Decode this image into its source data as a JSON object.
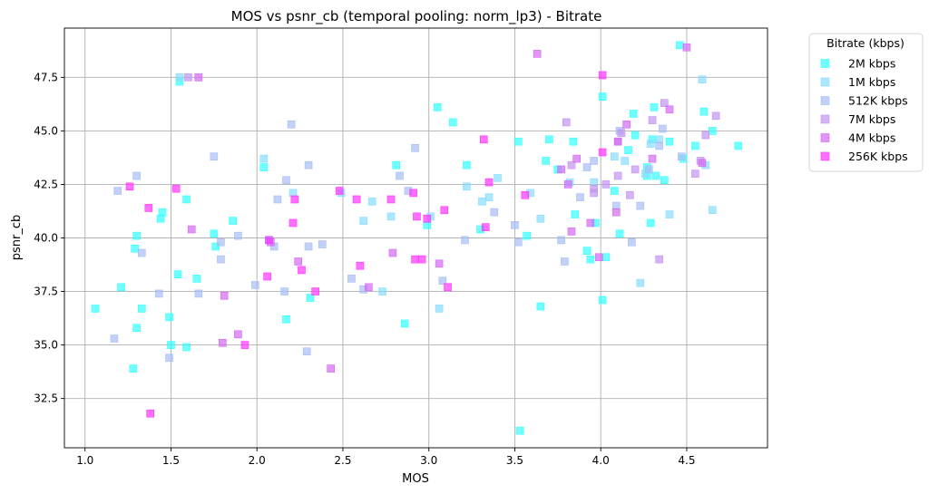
{
  "chart_data": {
    "type": "scatter",
    "title": "MOS vs psnr_cb (temporal pooling: norm_lp3) - Bitrate",
    "xlabel": "MOS",
    "ylabel": "psnr_cb",
    "xlim": [
      0.88,
      4.97
    ],
    "ylim": [
      30.2,
      49.8
    ],
    "xticks": [
      "1.0",
      "1.5",
      "2.0",
      "2.5",
      "3.0",
      "3.5",
      "4.0",
      "4.5"
    ],
    "yticks": [
      "32.5",
      "35.0",
      "37.5",
      "40.0",
      "42.5",
      "45.0",
      "47.5"
    ],
    "grid": true,
    "marker": "square",
    "legend": {
      "title": "Bitrate (kbps)",
      "placement": "outside-top-right"
    },
    "series": [
      {
        "name": "2M kbps",
        "color": "#33ffff",
        "points": [
          [
            1.06,
            36.7
          ],
          [
            1.21,
            37.7
          ],
          [
            1.28,
            33.9
          ],
          [
            1.29,
            39.5
          ],
          [
            1.3,
            35.8
          ],
          [
            1.3,
            40.1
          ],
          [
            1.33,
            36.7
          ],
          [
            1.44,
            40.9
          ],
          [
            1.45,
            41.2
          ],
          [
            1.49,
            36.3
          ],
          [
            1.5,
            35.0
          ],
          [
            1.54,
            38.3
          ],
          [
            1.55,
            47.3
          ],
          [
            1.59,
            41.8
          ],
          [
            1.59,
            34.9
          ],
          [
            1.65,
            38.1
          ],
          [
            1.75,
            40.2
          ],
          [
            1.76,
            39.6
          ],
          [
            1.86,
            40.8
          ],
          [
            2.04,
            43.3
          ],
          [
            2.07,
            39.9
          ],
          [
            2.17,
            36.2
          ],
          [
            2.31,
            37.2
          ],
          [
            2.81,
            43.4
          ],
          [
            2.86,
            36.0
          ],
          [
            2.99,
            40.6
          ],
          [
            3.05,
            46.1
          ],
          [
            3.14,
            45.4
          ],
          [
            3.22,
            43.4
          ],
          [
            3.3,
            40.4
          ],
          [
            3.52,
            44.5
          ],
          [
            3.53,
            31.0
          ],
          [
            3.57,
            40.1
          ],
          [
            3.65,
            36.8
          ],
          [
            3.68,
            43.6
          ],
          [
            3.7,
            44.6
          ],
          [
            3.75,
            43.2
          ],
          [
            3.84,
            44.5
          ],
          [
            3.85,
            41.1
          ],
          [
            3.92,
            39.4
          ],
          [
            3.94,
            39.0
          ],
          [
            3.97,
            40.7
          ],
          [
            4.01,
            37.1
          ],
          [
            4.01,
            46.6
          ],
          [
            4.03,
            39.1
          ],
          [
            4.08,
            42.2
          ],
          [
            4.11,
            40.2
          ],
          [
            4.16,
            44.1
          ],
          [
            4.19,
            45.8
          ],
          [
            4.2,
            44.8
          ],
          [
            4.27,
            43.3
          ],
          [
            4.27,
            42.9
          ],
          [
            4.29,
            40.7
          ],
          [
            4.3,
            44.6
          ],
          [
            4.31,
            46.1
          ],
          [
            4.32,
            42.9
          ],
          [
            4.37,
            42.7
          ],
          [
            4.4,
            44.5
          ],
          [
            4.46,
            49.0
          ],
          [
            4.48,
            43.7
          ],
          [
            4.55,
            44.3
          ],
          [
            4.6,
            45.9
          ],
          [
            4.65,
            45.0
          ],
          [
            4.8,
            44.3
          ]
        ]
      },
      {
        "name": "1M kbps",
        "color": "#88ddff",
        "points": [
          [
            1.55,
            47.5
          ],
          [
            2.04,
            43.7
          ],
          [
            2.21,
            42.1
          ],
          [
            2.49,
            42.1
          ],
          [
            2.62,
            40.8
          ],
          [
            2.67,
            41.7
          ],
          [
            2.73,
            37.5
          ],
          [
            2.78,
            41.0
          ],
          [
            3.01,
            41.0
          ],
          [
            3.06,
            36.7
          ],
          [
            3.22,
            42.4
          ],
          [
            3.31,
            41.7
          ],
          [
            3.35,
            41.9
          ],
          [
            3.4,
            42.8
          ],
          [
            3.59,
            42.1
          ],
          [
            3.65,
            40.9
          ],
          [
            3.82,
            42.6
          ],
          [
            3.96,
            42.6
          ],
          [
            4.08,
            43.8
          ],
          [
            4.14,
            43.6
          ],
          [
            4.23,
            37.9
          ],
          [
            4.26,
            43.0
          ],
          [
            4.29,
            44.4
          ],
          [
            4.34,
            44.6
          ],
          [
            4.4,
            41.1
          ],
          [
            4.59,
            47.4
          ],
          [
            4.61,
            43.4
          ],
          [
            4.65,
            41.3
          ]
        ]
      },
      {
        "name": "512K kbps",
        "color": "#a6bdf5",
        "points": [
          [
            1.17,
            35.3
          ],
          [
            1.19,
            42.2
          ],
          [
            1.3,
            42.9
          ],
          [
            1.33,
            39.3
          ],
          [
            1.43,
            37.4
          ],
          [
            1.49,
            34.4
          ],
          [
            1.66,
            37.4
          ],
          [
            1.75,
            43.8
          ],
          [
            1.79,
            39.8
          ],
          [
            1.79,
            39.0
          ],
          [
            1.89,
            40.1
          ],
          [
            1.99,
            37.8
          ],
          [
            2.1,
            39.6
          ],
          [
            2.12,
            41.8
          ],
          [
            2.16,
            37.5
          ],
          [
            2.17,
            42.7
          ],
          [
            2.2,
            45.3
          ],
          [
            2.3,
            39.6
          ],
          [
            2.3,
            43.4
          ],
          [
            2.29,
            34.7
          ],
          [
            2.38,
            39.7
          ],
          [
            2.55,
            38.1
          ],
          [
            2.62,
            37.6
          ],
          [
            2.83,
            42.9
          ],
          [
            2.88,
            42.2
          ],
          [
            2.92,
            44.2
          ],
          [
            3.08,
            38.0
          ],
          [
            3.21,
            39.9
          ],
          [
            3.38,
            41.2
          ],
          [
            3.5,
            40.6
          ],
          [
            3.52,
            39.8
          ],
          [
            3.77,
            39.9
          ],
          [
            3.79,
            38.9
          ],
          [
            3.88,
            41.9
          ],
          [
            3.92,
            43.3
          ],
          [
            3.96,
            43.6
          ],
          [
            4.09,
            41.5
          ],
          [
            4.11,
            45.0
          ],
          [
            4.18,
            39.8
          ],
          [
            4.23,
            41.5
          ],
          [
            4.28,
            43.2
          ],
          [
            4.34,
            44.3
          ],
          [
            4.36,
            45.1
          ],
          [
            4.47,
            43.8
          ]
        ]
      },
      {
        "name": "7M kbps",
        "color": "#c294f0",
        "points": [
          [
            1.6,
            47.5
          ],
          [
            3.8,
            45.4
          ],
          [
            3.83,
            43.4
          ],
          [
            3.96,
            42.1
          ],
          [
            3.96,
            42.3
          ],
          [
            4.03,
            42.5
          ],
          [
            4.1,
            44.5
          ],
          [
            4.12,
            44.9
          ],
          [
            4.1,
            42.9
          ],
          [
            4.17,
            42.0
          ],
          [
            4.2,
            43.2
          ],
          [
            4.3,
            45.5
          ],
          [
            4.34,
            39.0
          ],
          [
            4.37,
            46.3
          ],
          [
            4.55,
            43.0
          ],
          [
            4.58,
            43.6
          ],
          [
            4.61,
            44.8
          ],
          [
            4.67,
            45.7
          ]
        ]
      },
      {
        "name": "4M kbps",
        "color": "#d469f2",
        "points": [
          [
            1.66,
            47.5
          ],
          [
            1.62,
            40.4
          ],
          [
            1.81,
            37.3
          ],
          [
            1.8,
            35.1
          ],
          [
            1.89,
            35.5
          ],
          [
            2.08,
            39.8
          ],
          [
            2.24,
            38.9
          ],
          [
            2.43,
            33.9
          ],
          [
            2.65,
            37.7
          ],
          [
            2.79,
            39.3
          ],
          [
            3.06,
            38.8
          ],
          [
            3.63,
            48.6
          ],
          [
            3.77,
            43.2
          ],
          [
            3.86,
            43.7
          ],
          [
            3.81,
            42.5
          ],
          [
            3.83,
            40.3
          ],
          [
            3.94,
            40.7
          ],
          [
            3.99,
            39.1
          ],
          [
            4.09,
            41.2
          ],
          [
            4.1,
            44.5
          ],
          [
            4.15,
            45.3
          ],
          [
            4.3,
            43.7
          ],
          [
            4.4,
            46.0
          ],
          [
            4.5,
            48.9
          ],
          [
            4.59,
            43.5
          ]
        ]
      },
      {
        "name": "256K kbps",
        "color": "#ff33ff",
        "points": [
          [
            1.26,
            42.4
          ],
          [
            1.37,
            41.4
          ],
          [
            1.38,
            31.8
          ],
          [
            1.53,
            42.3
          ],
          [
            1.93,
            35.0
          ],
          [
            2.06,
            38.2
          ],
          [
            2.07,
            39.9
          ],
          [
            2.21,
            40.7
          ],
          [
            2.22,
            41.8
          ],
          [
            2.26,
            38.5
          ],
          [
            2.34,
            37.5
          ],
          [
            2.48,
            42.2
          ],
          [
            2.58,
            41.8
          ],
          [
            2.6,
            38.7
          ],
          [
            2.78,
            41.8
          ],
          [
            2.91,
            42.1
          ],
          [
            2.92,
            39.0
          ],
          [
            2.93,
            41.0
          ],
          [
            2.96,
            39.0
          ],
          [
            2.99,
            40.9
          ],
          [
            3.09,
            41.3
          ],
          [
            3.11,
            37.7
          ],
          [
            3.32,
            44.6
          ],
          [
            3.33,
            40.5
          ],
          [
            3.35,
            42.6
          ],
          [
            3.56,
            42.0
          ],
          [
            4.01,
            47.6
          ],
          [
            4.01,
            44.0
          ]
        ]
      }
    ]
  }
}
